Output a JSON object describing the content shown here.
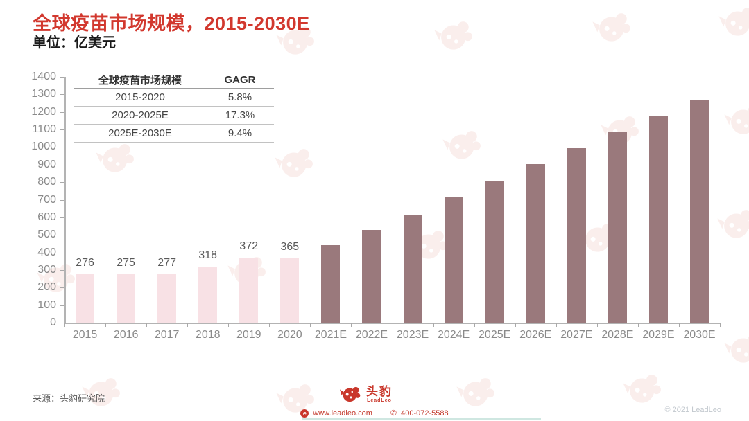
{
  "page": {
    "title": "全球疫苗市场规模，2015-2030E",
    "unit_label": "单位：亿美元",
    "source": "来源：头豹研究院",
    "copyright": "© 2021 LeadLeo"
  },
  "cagr_table": {
    "headers": [
      "全球疫苗市场规模",
      "GAGR"
    ],
    "rows": [
      {
        "period": "2015-2020",
        "value": "5.8%"
      },
      {
        "period": "2020-2025E",
        "value": "17.3%"
      },
      {
        "period": "2025E-2030E",
        "value": "9.4%"
      }
    ]
  },
  "chart_data": {
    "type": "bar",
    "title": "全球疫苗市场规模，2015-2030E",
    "ylabel": "亿美元",
    "xlabel": "",
    "ylim": [
      0,
      1400
    ],
    "ytick_step": 100,
    "grid": false,
    "legend": "none",
    "categories": [
      "2015",
      "2016",
      "2017",
      "2018",
      "2019",
      "2020",
      "2021E",
      "2022E",
      "2023E",
      "2024E",
      "2025E",
      "2026E",
      "2027E",
      "2028E",
      "2029E",
      "2030E"
    ],
    "values": [
      276,
      275,
      277,
      318,
      372,
      365,
      440,
      527,
      617,
      712,
      806,
      903,
      993,
      1085,
      1175,
      1270
    ],
    "labeled_categories": [
      "2015",
      "2016",
      "2017",
      "2018",
      "2019",
      "2020"
    ],
    "historical_count": 6,
    "historical_color": "#f8e1e5",
    "forecast_color": "#9a797c"
  },
  "footer": {
    "logo_cn": "头豹",
    "logo_en": "LeadLeo",
    "website": "www.leadleo.com",
    "phone": "400-072-5588",
    "web_icon_letter": "e"
  }
}
